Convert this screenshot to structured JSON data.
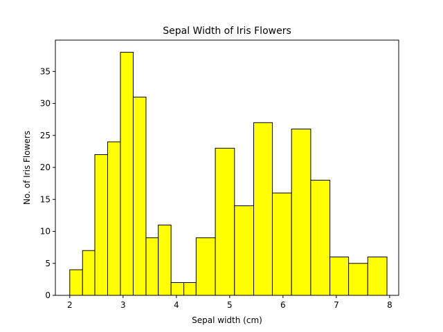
{
  "chart_data": {
    "type": "bar",
    "title": "Sepal Width of Iris Flowers",
    "xlabel": "Sepal width (cm)",
    "ylabel": "No. of Iris Flowers",
    "xlim": [
      1.73,
      8.17
    ],
    "ylim": [
      0,
      39.9
    ],
    "grid": false,
    "legend": "none",
    "bar_color": "#ffff00",
    "edge_color": "#000000",
    "bins": [
      {
        "x0": 2.0,
        "x1": 2.24,
        "value": 4
      },
      {
        "x0": 2.24,
        "x1": 2.47,
        "value": 7
      },
      {
        "x0": 2.47,
        "x1": 2.71,
        "value": 22
      },
      {
        "x0": 2.71,
        "x1": 2.95,
        "value": 24
      },
      {
        "x0": 2.95,
        "x1": 3.19,
        "value": 38
      },
      {
        "x0": 3.19,
        "x1": 3.43,
        "value": 31
      },
      {
        "x0": 3.43,
        "x1": 3.66,
        "value": 9
      },
      {
        "x0": 3.66,
        "x1": 3.9,
        "value": 11
      },
      {
        "x0": 3.9,
        "x1": 4.14,
        "value": 2
      },
      {
        "x0": 4.14,
        "x1": 4.37,
        "value": 2
      },
      {
        "x0": 4.37,
        "x1": 4.73,
        "value": 9
      },
      {
        "x0": 4.73,
        "x1": 5.09,
        "value": 23
      },
      {
        "x0": 5.09,
        "x1": 5.45,
        "value": 14
      },
      {
        "x0": 5.45,
        "x1": 5.8,
        "value": 27
      },
      {
        "x0": 5.8,
        "x1": 6.16,
        "value": 16
      },
      {
        "x0": 6.16,
        "x1": 6.52,
        "value": 26
      },
      {
        "x0": 6.52,
        "x1": 6.88,
        "value": 18
      },
      {
        "x0": 6.88,
        "x1": 7.23,
        "value": 6
      },
      {
        "x0": 7.23,
        "x1": 7.59,
        "value": 5
      },
      {
        "x0": 7.59,
        "x1": 7.95,
        "value": 6
      }
    ],
    "x_ticks": [
      2,
      3,
      4,
      5,
      6,
      7,
      8
    ],
    "y_ticks": [
      0,
      5,
      10,
      15,
      20,
      25,
      30,
      35
    ]
  }
}
